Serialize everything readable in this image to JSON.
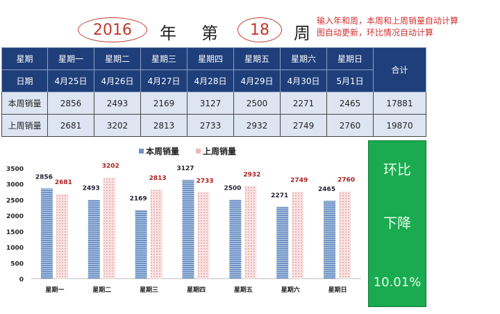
{
  "header": {
    "year": "2016",
    "year_suffix": "年",
    "week_prefix": "第",
    "week": "18",
    "week_suffix": "周",
    "note_line1": "输入年和周，本周和上周销量自动计算",
    "note_line2": "图自动更新，环比情况自动计算"
  },
  "table": {
    "row_weekday_label": "星期",
    "row_date_label": "日期",
    "total_label": "合计",
    "weekdays": [
      "星期一",
      "星期二",
      "星期三",
      "星期四",
      "星期五",
      "星期六",
      "星期日"
    ],
    "dates": [
      "4月25日",
      "4月26日",
      "4月27日",
      "4月28日",
      "4月29日",
      "4月30日",
      "5月1日"
    ],
    "this_week": {
      "label": "本周销量",
      "values": [
        "2856",
        "2493",
        "2169",
        "3127",
        "2500",
        "2271",
        "2465"
      ],
      "total": "17881"
    },
    "last_week": {
      "label": "上周销量",
      "values": [
        "2681",
        "3202",
        "2813",
        "2733",
        "2932",
        "2749",
        "2760"
      ],
      "total": "19870"
    }
  },
  "summary": {
    "title": "环比",
    "direction": "下降",
    "percent": "10.01%"
  },
  "chart_data": {
    "type": "bar",
    "categories": [
      "星期一",
      "星期二",
      "星期三",
      "星期四",
      "星期五",
      "星期六",
      "星期日"
    ],
    "series": [
      {
        "name": "本周销量",
        "values": [
          2856,
          2493,
          2169,
          3127,
          2500,
          2271,
          2465
        ],
        "color": "#6f94c6"
      },
      {
        "name": "上周销量",
        "values": [
          2681,
          3202,
          2813,
          2733,
          2932,
          2749,
          2760
        ],
        "color": "#f2b8b8"
      }
    ],
    "yticks": [
      "0",
      "500",
      "1000",
      "1500",
      "2000",
      "2500",
      "3000",
      "3500"
    ],
    "ylim": [
      0,
      3500
    ],
    "legend": "top"
  }
}
